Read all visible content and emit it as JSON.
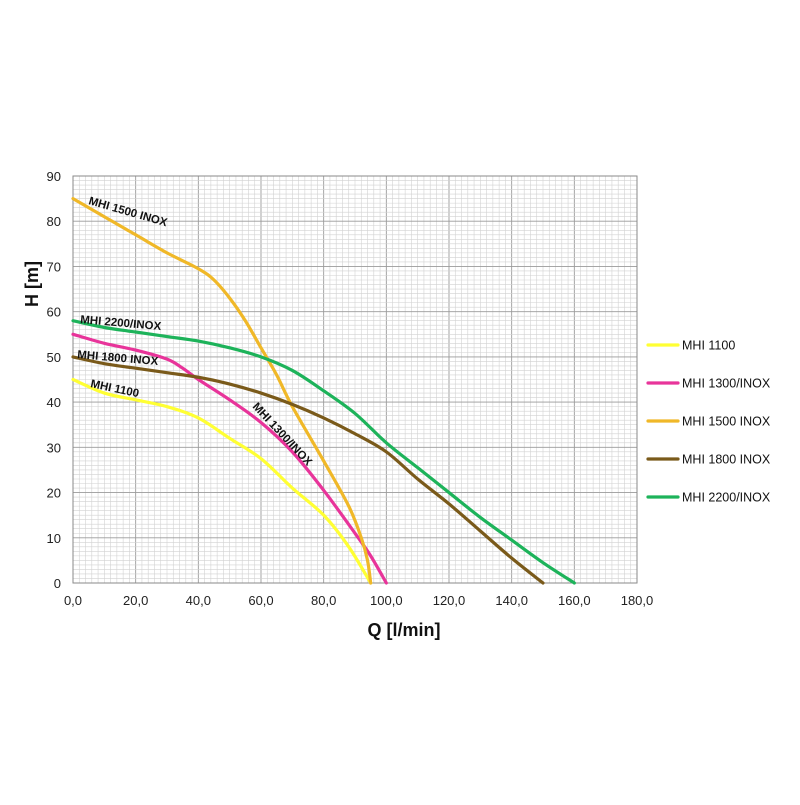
{
  "chart_data": {
    "type": "line",
    "title": "",
    "xlabel": "Q [l/min]",
    "ylabel": "H [m]",
    "xlim": [
      0,
      180
    ],
    "ylim": [
      0,
      90
    ],
    "x_ticks": [
      "0,0",
      "20,0",
      "40,0",
      "60,0",
      "80,0",
      "100,0",
      "120,0",
      "140,0",
      "160,0",
      "180,0"
    ],
    "y_ticks": [
      "0",
      "10",
      "20",
      "30",
      "40",
      "50",
      "60",
      "70",
      "80",
      "90"
    ],
    "grid": true,
    "legend_position": "right",
    "series": [
      {
        "name": "MHI 1100",
        "color": "#ffff33",
        "label": "MHI 1100",
        "points": [
          [
            0,
            45
          ],
          [
            10,
            42
          ],
          [
            20,
            40.5
          ],
          [
            30,
            39
          ],
          [
            40,
            36.5
          ],
          [
            50,
            32
          ],
          [
            60,
            27.5
          ],
          [
            70,
            21
          ],
          [
            80,
            15
          ],
          [
            88,
            8
          ],
          [
            95,
            0
          ]
        ]
      },
      {
        "name": "MHI 1300/INOX",
        "color": "#e8349a",
        "label": "MHI 1300/INOX",
        "points": [
          [
            0,
            55
          ],
          [
            10,
            53
          ],
          [
            20,
            51.5
          ],
          [
            30,
            49.5
          ],
          [
            35,
            47.5
          ],
          [
            40,
            45
          ],
          [
            50,
            40.5
          ],
          [
            60,
            35.5
          ],
          [
            70,
            29
          ],
          [
            80,
            20.5
          ],
          [
            90,
            11
          ],
          [
            95,
            6
          ],
          [
            100,
            0
          ]
        ]
      },
      {
        "name": "MHI 1500 INOX",
        "color": "#f0b828",
        "label": "MHI 1500 INOX",
        "points": [
          [
            0,
            85
          ],
          [
            10,
            81
          ],
          [
            20,
            77
          ],
          [
            30,
            73
          ],
          [
            40,
            69.5
          ],
          [
            45,
            67
          ],
          [
            50,
            63
          ],
          [
            55,
            58
          ],
          [
            60,
            52
          ],
          [
            65,
            46
          ],
          [
            70,
            39
          ],
          [
            80,
            27
          ],
          [
            88,
            17
          ],
          [
            92,
            10
          ],
          [
            94,
            5
          ],
          [
            95,
            0
          ]
        ]
      },
      {
        "name": "MHI 1800 INOX",
        "color": "#7a5a1a",
        "label": "MHI 1800 INOX",
        "points": [
          [
            0,
            50
          ],
          [
            10,
            48.5
          ],
          [
            20,
            47.5
          ],
          [
            30,
            46.5
          ],
          [
            40,
            45.5
          ],
          [
            50,
            44
          ],
          [
            60,
            42
          ],
          [
            70,
            39.5
          ],
          [
            80,
            36.5
          ],
          [
            90,
            33
          ],
          [
            100,
            29
          ],
          [
            110,
            23
          ],
          [
            120,
            17.5
          ],
          [
            130,
            11.5
          ],
          [
            140,
            5.5
          ],
          [
            150,
            0
          ]
        ]
      },
      {
        "name": "MHI 2200/INOX",
        "color": "#1db35a",
        "label": "MHI 2200/INOX",
        "points": [
          [
            0,
            58
          ],
          [
            10,
            56.5
          ],
          [
            20,
            55.5
          ],
          [
            30,
            54.5
          ],
          [
            40,
            53.5
          ],
          [
            50,
            52
          ],
          [
            60,
            50
          ],
          [
            70,
            47
          ],
          [
            80,
            42.5
          ],
          [
            90,
            37.5
          ],
          [
            100,
            31
          ],
          [
            110,
            25.5
          ],
          [
            120,
            20
          ],
          [
            130,
            14.5
          ],
          [
            140,
            9.5
          ],
          [
            150,
            4.5
          ],
          [
            160,
            0
          ]
        ]
      }
    ]
  }
}
